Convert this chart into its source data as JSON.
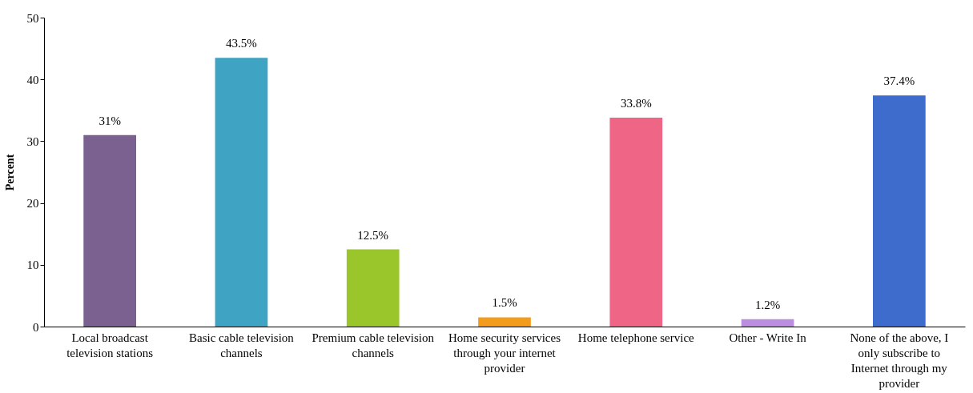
{
  "chart_data": {
    "type": "bar",
    "ylabel": "Percent",
    "categories": [
      "Local broadcast television stations",
      "Basic cable television channels",
      "Premium cable television channels",
      "Home security services through your internet provider",
      "Home telephone service",
      "Other - Write In",
      "None of the above, I only subscribe to Internet through my provider"
    ],
    "values": [
      31,
      43.5,
      12.5,
      1.5,
      33.8,
      1.2,
      37.4
    ],
    "colors": [
      "#7b6190",
      "#3fa3c3",
      "#9bc62b",
      "#f29b1d",
      "#ef6585",
      "#bb8ee0",
      "#3d6ccc"
    ],
    "value_labels": [
      "31%",
      "43.5%",
      "12.5%",
      "1.5%",
      "33.8%",
      "1.2%",
      "37.4%"
    ],
    "ylim": [
      0,
      50
    ],
    "yticks": [
      0,
      10,
      20,
      30,
      40,
      50
    ]
  }
}
